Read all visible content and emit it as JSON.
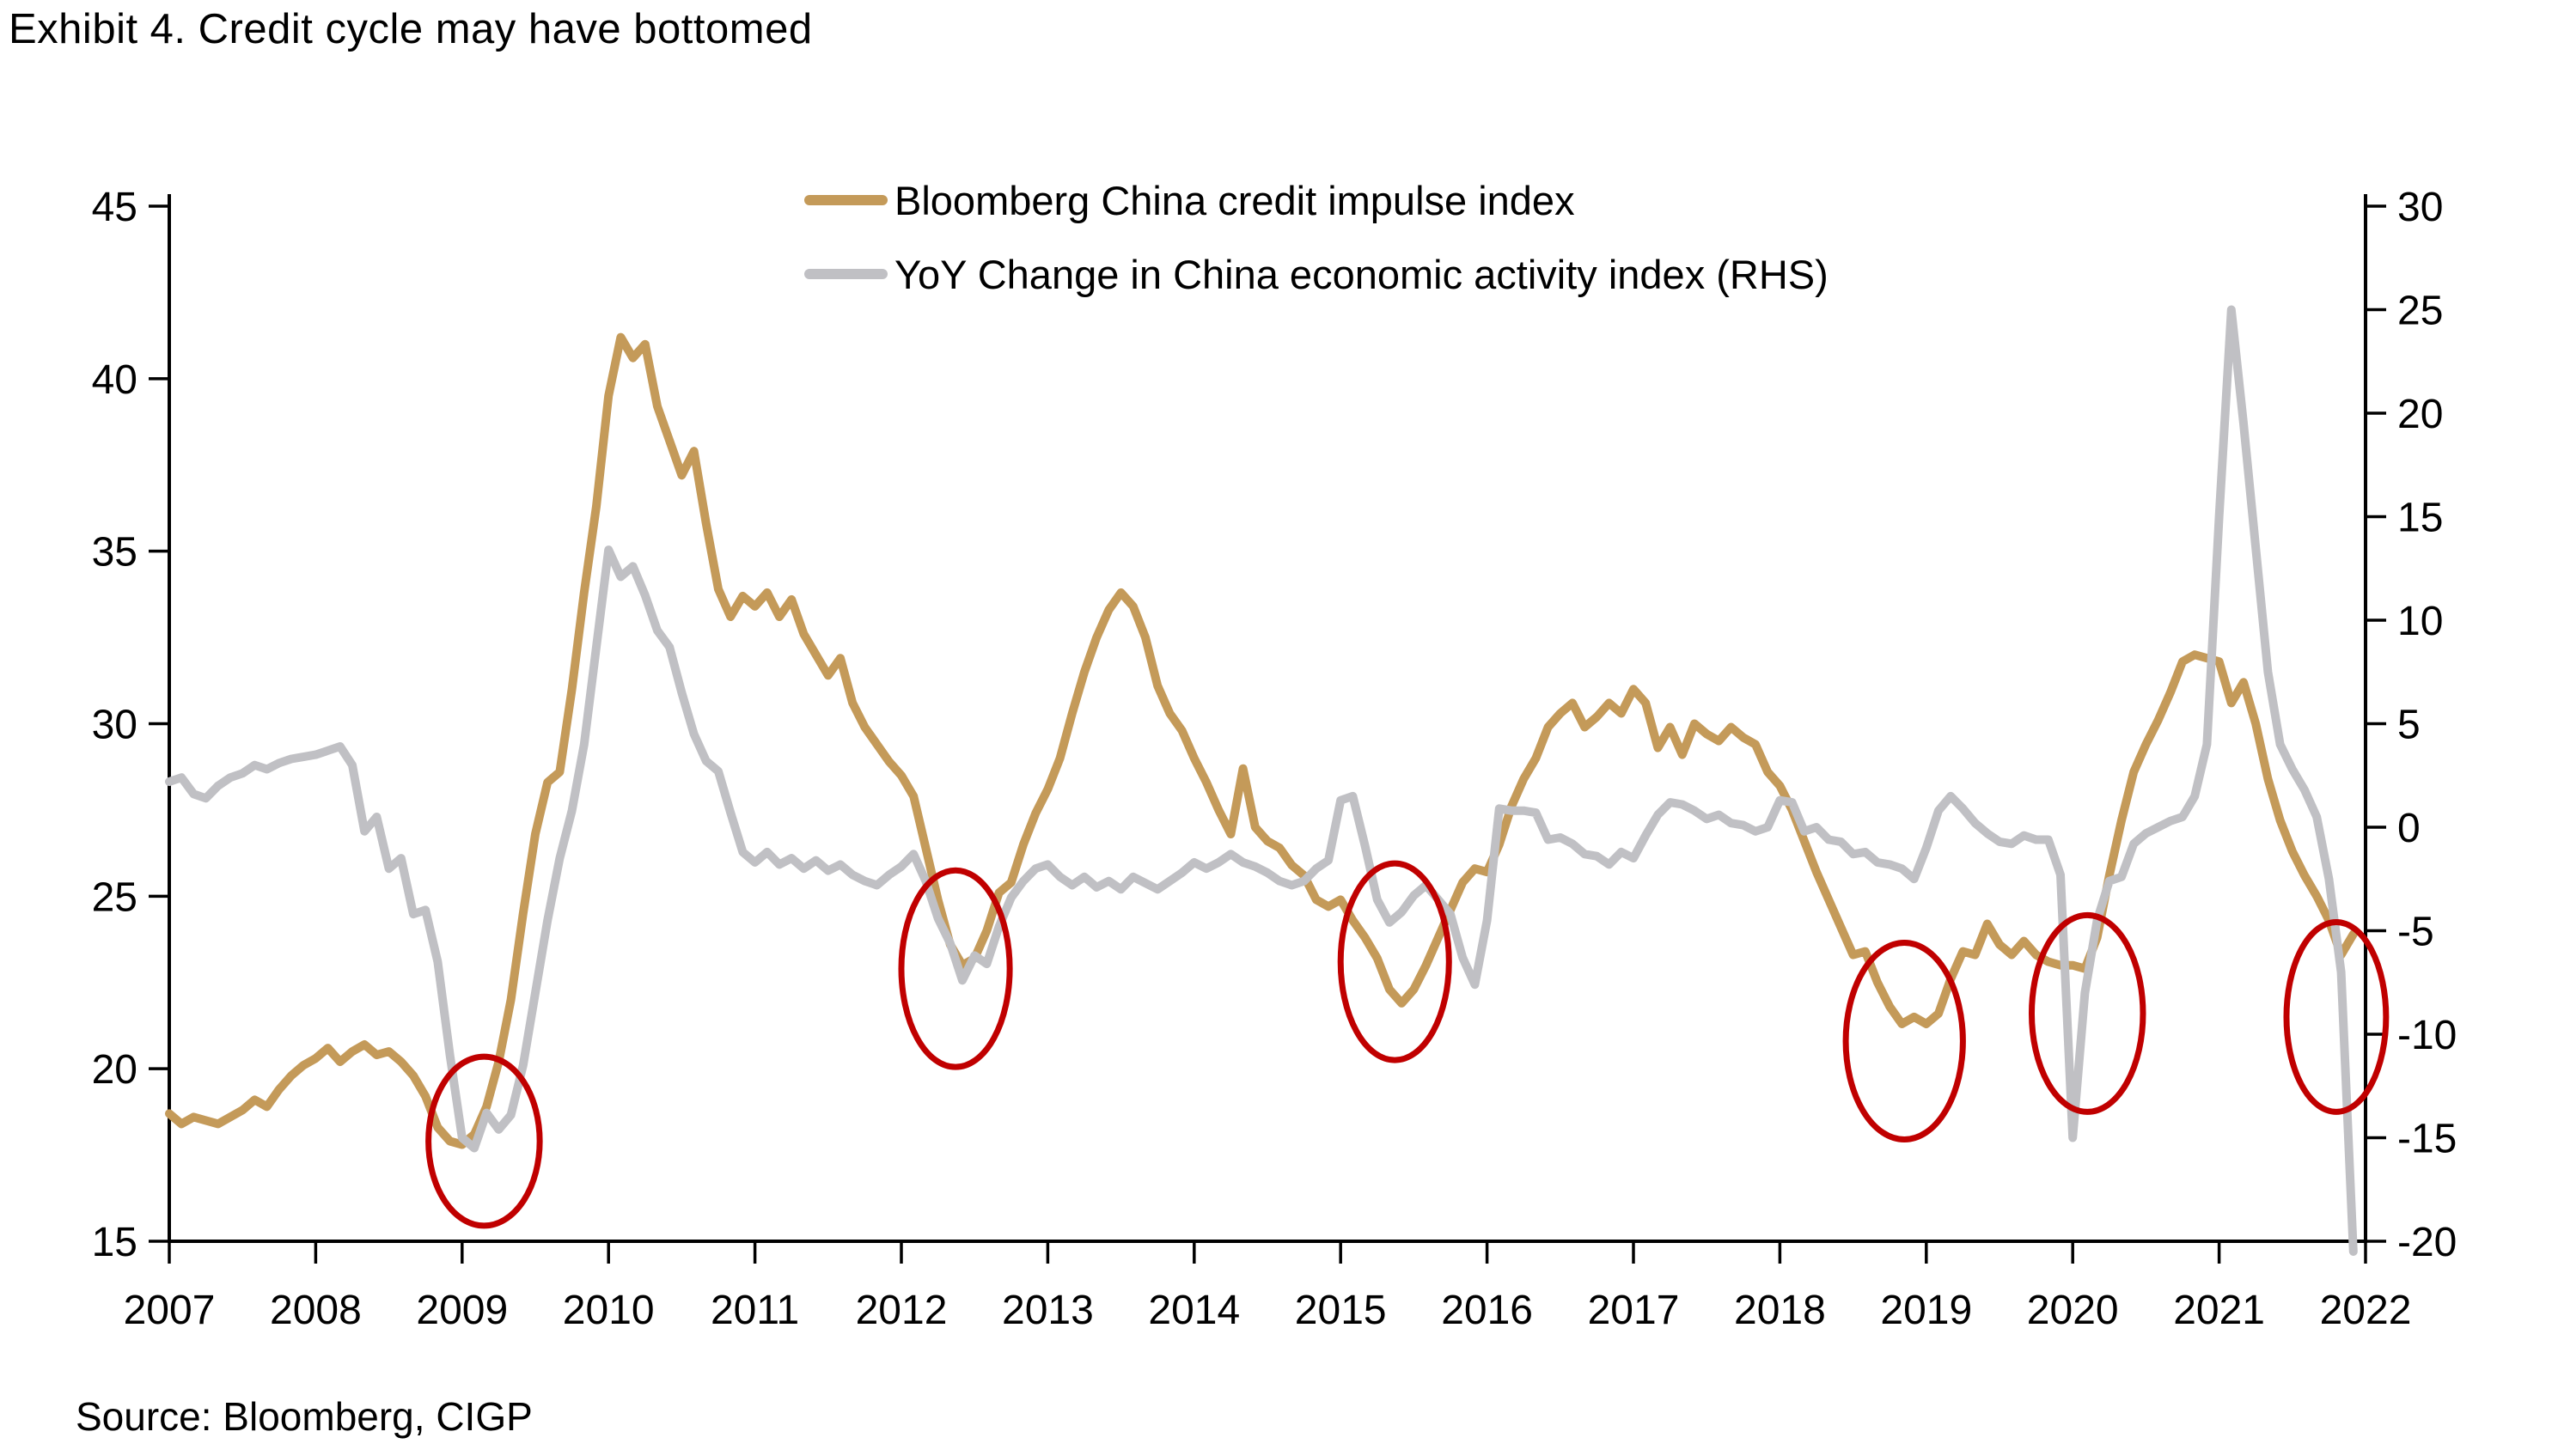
{
  "title": "Exhibit 4. Credit cycle may have bottomed",
  "source": "Source: Bloomberg, CIGP",
  "colors": {
    "gold": "#C49A59",
    "gray": "#C0C0C4",
    "red": "#C00000",
    "axis": "#000000",
    "text": "#000000",
    "background": "#FFFFFF"
  },
  "legend": {
    "items": [
      {
        "label": "Bloomberg China credit impulse index",
        "color": "#C49A59"
      },
      {
        "label": "YoY Change in China economic activity index (RHS)",
        "color": "#C0C0C4"
      }
    ]
  },
  "chart_data": {
    "type": "line",
    "title": "Exhibit 4. Credit cycle may have bottomed",
    "grid": false,
    "legend_position": "top-center",
    "x_axis": {
      "start_year": 2007,
      "end_year": 2022,
      "frequency": "monthly",
      "tick_labels": [
        "2007",
        "2008",
        "2009",
        "2010",
        "2011",
        "2012",
        "2013",
        "2014",
        "2015",
        "2016",
        "2017",
        "2018",
        "2019",
        "2020",
        "2021",
        "2022"
      ]
    },
    "left_axis": {
      "range": [
        15,
        45
      ],
      "ticks": [
        45,
        40,
        35,
        30,
        25,
        20,
        15
      ],
      "applies_to": "Bloomberg China credit impulse index"
    },
    "right_axis": {
      "range": [
        -20,
        30
      ],
      "ticks": [
        30,
        25,
        20,
        15,
        10,
        5,
        0,
        -5,
        -10,
        -15,
        -20
      ],
      "applies_to": "YoY Change in China economic activity index (RHS)"
    },
    "series": [
      {
        "name": "Bloomberg China credit impulse index",
        "axis": "left",
        "color": "#C49A59",
        "start": "2007-01",
        "values": [
          18.7,
          18.4,
          18.6,
          18.5,
          18.4,
          18.6,
          18.8,
          19.1,
          18.9,
          19.4,
          19.8,
          20.1,
          20.3,
          20.6,
          20.2,
          20.5,
          20.7,
          20.4,
          20.5,
          20.2,
          19.8,
          19.2,
          18.3,
          17.9,
          17.8,
          18.1,
          18.9,
          20.2,
          22.0,
          24.5,
          26.8,
          28.3,
          28.6,
          31.0,
          33.8,
          36.3,
          39.5,
          41.2,
          40.6,
          41.0,
          39.2,
          38.2,
          37.2,
          37.9,
          35.8,
          33.9,
          33.1,
          33.7,
          33.4,
          33.8,
          33.1,
          33.6,
          32.6,
          32.0,
          31.4,
          31.9,
          30.6,
          29.9,
          29.4,
          28.9,
          28.5,
          27.9,
          26.4,
          24.9,
          23.6,
          23.0,
          23.2,
          24.0,
          25.1,
          25.4,
          26.5,
          27.4,
          28.1,
          29.0,
          30.3,
          31.5,
          32.5,
          33.3,
          33.8,
          33.4,
          32.5,
          31.1,
          30.3,
          29.8,
          29.0,
          28.3,
          27.5,
          26.8,
          28.7,
          27.0,
          26.6,
          26.4,
          25.9,
          25.6,
          24.9,
          24.7,
          24.9,
          24.3,
          23.8,
          23.2,
          22.3,
          21.9,
          22.3,
          23.0,
          23.8,
          24.6,
          25.4,
          25.8,
          25.7,
          26.5,
          27.6,
          28.4,
          29.0,
          29.9,
          30.3,
          30.6,
          29.9,
          30.2,
          30.6,
          30.3,
          31.0,
          30.6,
          29.3,
          29.9,
          29.1,
          30.0,
          29.7,
          29.5,
          29.9,
          29.6,
          29.4,
          28.6,
          28.2,
          27.5,
          26.6,
          25.7,
          24.9,
          24.1,
          23.3,
          23.4,
          22.5,
          21.8,
          21.3,
          21.5,
          21.3,
          21.6,
          22.6,
          23.4,
          23.3,
          24.2,
          23.6,
          23.3,
          23.7,
          23.3,
          23.1,
          23.0,
          23.0,
          22.9,
          23.8,
          25.6,
          27.2,
          28.6,
          29.4,
          30.1,
          30.9,
          31.8,
          32.0,
          31.9,
          31.8,
          30.6,
          31.2,
          30.0,
          28.4,
          27.2,
          26.3,
          25.6,
          25.0,
          24.3,
          23.3,
          23.9
        ]
      },
      {
        "name": "YoY Change in China economic activity index (RHS)",
        "axis": "right",
        "color": "#C0C0C4",
        "start": "2007-01",
        "values": [
          2.2,
          2.4,
          1.6,
          1.4,
          2.0,
          2.4,
          2.6,
          3.0,
          2.8,
          3.1,
          3.3,
          3.4,
          3.5,
          3.7,
          3.9,
          3.0,
          -0.2,
          0.5,
          -2.0,
          -1.5,
          -4.2,
          -4.0,
          -6.5,
          -11.0,
          -15.0,
          -15.5,
          -13.8,
          -14.6,
          -13.9,
          -11.5,
          -8.0,
          -4.5,
          -1.5,
          0.8,
          4.0,
          8.7,
          13.4,
          12.1,
          12.6,
          11.2,
          9.5,
          8.7,
          6.5,
          4.5,
          3.2,
          2.7,
          0.7,
          -1.2,
          -1.7,
          -1.2,
          -1.8,
          -1.5,
          -2.0,
          -1.6,
          -2.1,
          -1.8,
          -2.3,
          -2.6,
          -2.8,
          -2.3,
          -1.9,
          -1.3,
          -2.6,
          -4.4,
          -5.6,
          -7.4,
          -6.2,
          -6.6,
          -4.8,
          -3.4,
          -2.6,
          -2.0,
          -1.8,
          -2.4,
          -2.8,
          -2.4,
          -2.9,
          -2.6,
          -3.0,
          -2.4,
          -2.7,
          -3.0,
          -2.6,
          -2.2,
          -1.7,
          -2.0,
          -1.7,
          -1.3,
          -1.7,
          -1.9,
          -2.2,
          -2.6,
          -2.8,
          -2.6,
          -2.0,
          -1.6,
          1.3,
          1.5,
          -0.9,
          -3.5,
          -4.6,
          -4.1,
          -3.3,
          -2.8,
          -3.5,
          -4.2,
          -6.3,
          -7.6,
          -4.5,
          0.9,
          0.8,
          0.8,
          0.7,
          -0.6,
          -0.5,
          -0.8,
          -1.3,
          -1.4,
          -1.8,
          -1.2,
          -1.5,
          -0.4,
          0.6,
          1.2,
          1.1,
          0.8,
          0.4,
          0.6,
          0.2,
          0.1,
          -0.2,
          0.0,
          1.3,
          1.2,
          -0.2,
          0.0,
          -0.6,
          -0.7,
          -1.3,
          -1.2,
          -1.7,
          -1.8,
          -2.0,
          -2.5,
          -1.0,
          0.8,
          1.5,
          0.9,
          0.2,
          -0.3,
          -0.7,
          -0.8,
          -0.4,
          -0.6,
          -0.6,
          -2.3,
          -15.0,
          -8.0,
          -4.5,
          -2.6,
          -2.4,
          -0.8,
          -0.3,
          0.0,
          0.3,
          0.5,
          1.5,
          4.0,
          15.0,
          25.0,
          19.5,
          13.5,
          7.5,
          4.0,
          2.8,
          1.8,
          0.5,
          -2.5,
          -7.0,
          -20.5
        ]
      }
    ],
    "annotations": [
      {
        "type": "ellipse",
        "x_year": 2009.15,
        "y_left": 17.9,
        "rx_years": 0.38,
        "ry_left_units": 2.45,
        "color": "#C00000"
      },
      {
        "type": "ellipse",
        "x_year": 2012.37,
        "y_left": 22.9,
        "rx_years": 0.37,
        "ry_left_units": 2.85,
        "color": "#C00000"
      },
      {
        "type": "ellipse",
        "x_year": 2015.37,
        "y_left": 23.1,
        "rx_years": 0.37,
        "ry_left_units": 2.85,
        "color": "#C00000"
      },
      {
        "type": "ellipse",
        "x_year": 2018.85,
        "y_left": 20.8,
        "rx_years": 0.4,
        "ry_left_units": 2.85,
        "color": "#C00000"
      },
      {
        "type": "ellipse",
        "x_year": 2020.1,
        "y_left": 21.6,
        "rx_years": 0.38,
        "ry_left_units": 2.85,
        "color": "#C00000"
      },
      {
        "type": "ellipse",
        "x_year": 2021.8,
        "y_left": 21.5,
        "rx_years": 0.34,
        "ry_left_units": 2.75,
        "color": "#C00000"
      }
    ]
  }
}
